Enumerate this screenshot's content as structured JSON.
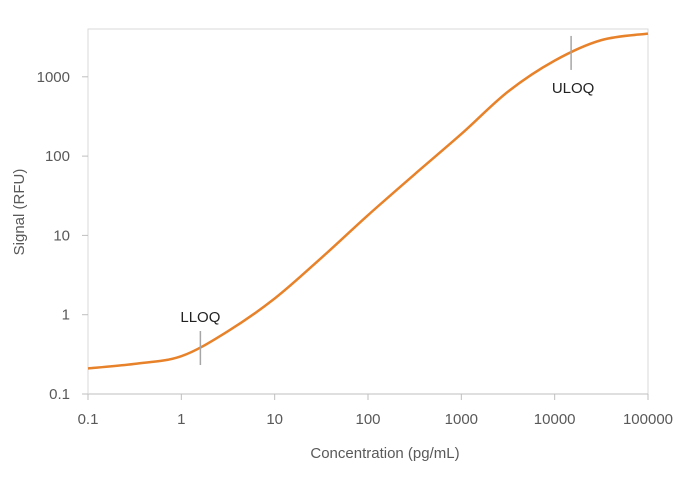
{
  "chart_data": {
    "type": "line",
    "title": "",
    "xlabel": "Concentration (pg/mL)",
    "ylabel": "Signal (RFU)",
    "x_scale": "log",
    "y_scale": "log",
    "xlim": [
      0.1,
      100000
    ],
    "ylim": [
      0.1,
      5000
    ],
    "x_ticks": [
      "0.1",
      "1",
      "10",
      "100",
      "1000",
      "10000",
      "100000"
    ],
    "y_ticks": [
      "0.1",
      "1",
      "10",
      "100",
      "1000"
    ],
    "grid": false,
    "series": [
      {
        "color": "#E8822A",
        "points": [
          [
            0.1,
            0.21
          ],
          [
            0.316,
            0.24
          ],
          [
            1,
            0.3
          ],
          [
            3.16,
            0.62
          ],
          [
            10,
            1.6
          ],
          [
            31.6,
            5.2
          ],
          [
            100,
            18
          ],
          [
            316,
            59
          ],
          [
            1000,
            190
          ],
          [
            3162,
            650
          ],
          [
            10000,
            1600
          ],
          [
            31623,
            2900
          ],
          [
            100000,
            3500
          ]
        ]
      }
    ],
    "annotations": [
      {
        "label": "LLOQ",
        "x": 1.6,
        "y": 0.38
      },
      {
        "label": "ULOQ",
        "x": 15000,
        "y": 2000
      }
    ],
    "marker_color": "#A6A6A6"
  }
}
